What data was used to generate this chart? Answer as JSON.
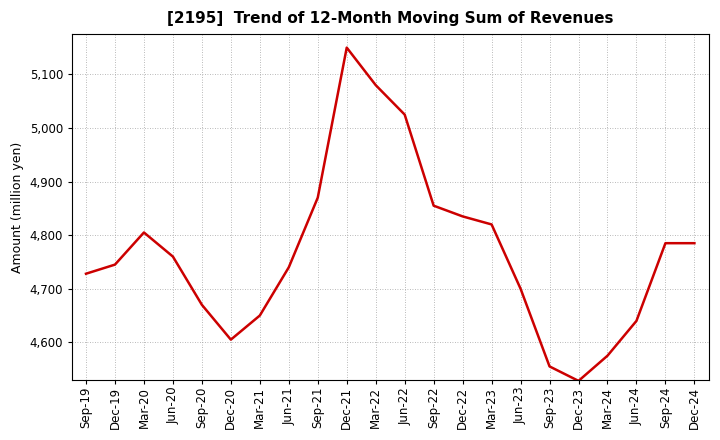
{
  "title": "[2195]  Trend of 12-Month Moving Sum of Revenues",
  "ylabel": "Amount (million yen)",
  "line_color": "#cc0000",
  "background_color": "#ffffff",
  "plot_bg_color": "#ffffff",
  "grid_color": "#999999",
  "tick_labels": [
    "Sep-19",
    "Dec-19",
    "Mar-20",
    "Jun-20",
    "Sep-20",
    "Dec-20",
    "Mar-21",
    "Jun-21",
    "Sep-21",
    "Dec-21",
    "Mar-22",
    "Jun-22",
    "Sep-22",
    "Dec-22",
    "Mar-23",
    "Jun-23",
    "Sep-23",
    "Dec-23",
    "Mar-24",
    "Jun-24",
    "Sep-24",
    "Dec-24"
  ],
  "values": [
    4728,
    4745,
    4805,
    4760,
    4670,
    4605,
    4650,
    4740,
    4870,
    5150,
    5080,
    5025,
    4855,
    4835,
    4820,
    4700,
    4555,
    4528,
    4575,
    4640,
    4785,
    4785
  ],
  "ylim": [
    4530,
    5175
  ],
  "yticks": [
    4600,
    4700,
    4800,
    4900,
    5000,
    5100
  ],
  "title_fontsize": 11,
  "axis_fontsize": 9,
  "tick_fontsize": 8.5,
  "linewidth": 1.8
}
